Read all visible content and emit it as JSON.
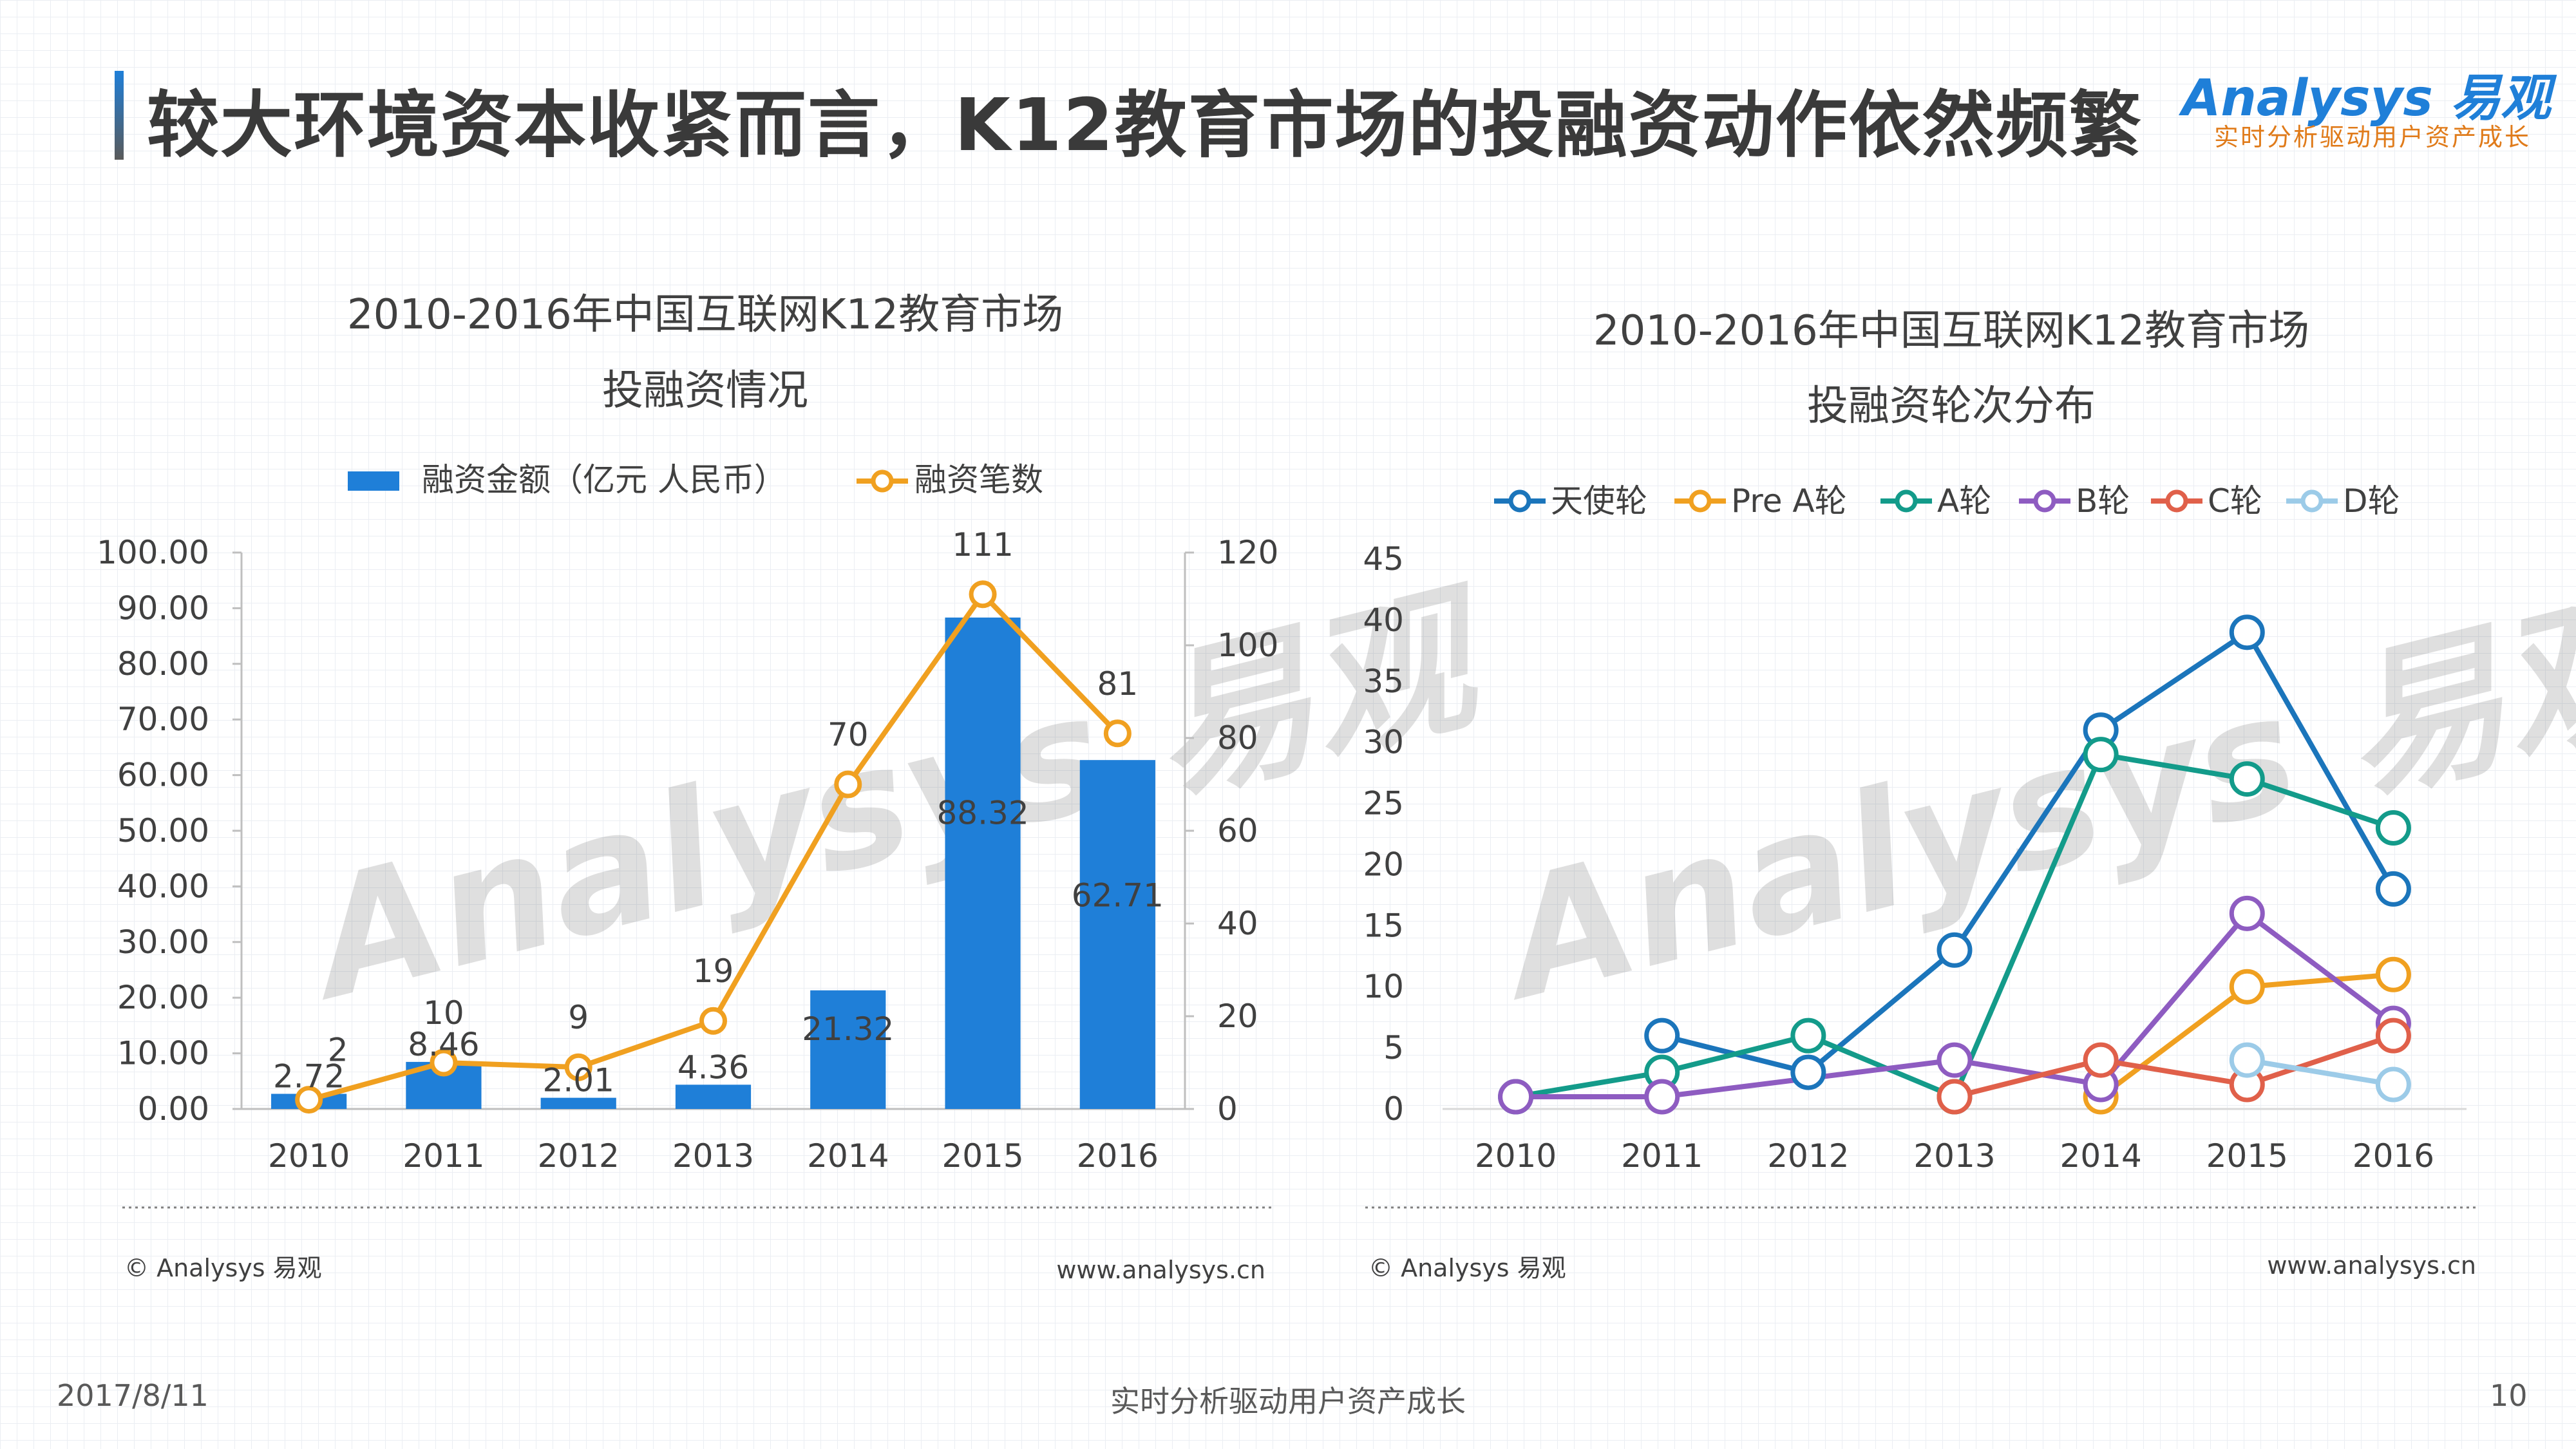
{
  "header": {
    "title": "较大环境资本收紧而言，K12教育市场的投融资动作依然频繁",
    "logo_text": "Analysys 易观",
    "logo_tagline": "实时分析驱动用户资产成长"
  },
  "footer": {
    "date": "2017/8/11",
    "tagline": "实时分析驱动用户资产成长",
    "page_number": "10"
  },
  "colors": {
    "bar": "#1f7fd8",
    "line_orange": "#f0a020",
    "angel": "#1b75bb",
    "pre_a": "#f0a020",
    "a_round": "#139b8a",
    "b_round": "#8e5cc1",
    "c_round": "#e0604a",
    "d_round": "#9ccbe8"
  },
  "chart_data": [
    {
      "type": "bar",
      "title": "2010-2016年中国互联网K12教育市场",
      "subtitle": "投融资情况",
      "categories": [
        "2010",
        "2011",
        "2012",
        "2013",
        "2014",
        "2015",
        "2016"
      ],
      "series": [
        {
          "name": "融资金额（亿元 人民币）",
          "type": "bar",
          "axis": "left",
          "values": [
            2.72,
            8.46,
            2.01,
            4.36,
            21.32,
            88.32,
            62.71
          ],
          "labels": [
            "2.72",
            "8.46",
            "2.01",
            "4.36",
            "21.32",
            "88.32",
            "62.71"
          ]
        },
        {
          "name": "融资笔数",
          "type": "line",
          "axis": "right",
          "values": [
            2,
            10,
            9,
            19,
            70,
            111,
            81
          ],
          "labels": [
            "2",
            "10",
            "9",
            "19",
            "70",
            "111",
            "81"
          ]
        }
      ],
      "ylim_left": [
        0,
        100
      ],
      "ylim_right": [
        0,
        120
      ],
      "left_ticks": [
        "0.00",
        "10.00",
        "20.00",
        "30.00",
        "40.00",
        "50.00",
        "60.00",
        "70.00",
        "80.00",
        "90.00",
        "100.00"
      ],
      "right_ticks": [
        "0",
        "20",
        "40",
        "60",
        "80",
        "100",
        "120"
      ],
      "legend_position": "top",
      "source": "© Analysys 易观",
      "website": "www.analysys.cn"
    },
    {
      "type": "line",
      "title": "2010-2016年中国互联网K12教育市场",
      "subtitle": "投融资轮次分布",
      "categories": [
        "2010",
        "2011",
        "2012",
        "2013",
        "2014",
        "2015",
        "2016"
      ],
      "series": [
        {
          "name": "天使轮",
          "x": [
            "2011",
            "2012",
            "2013",
            "2014",
            "2015",
            "2016"
          ],
          "values": [
            6,
            3,
            13,
            31,
            39,
            18
          ]
        },
        {
          "name": "Pre A轮",
          "x": [
            "2014",
            "2015",
            "2016"
          ],
          "values": [
            1,
            10,
            11
          ]
        },
        {
          "name": "A轮",
          "x": [
            "2010",
            "2011",
            "2012",
            "2013",
            "2014",
            "2015",
            "2016"
          ],
          "values": [
            1,
            3,
            6,
            1,
            29,
            27,
            23
          ]
        },
        {
          "name": "B轮",
          "x": [
            "2010",
            "2011",
            "2013",
            "2014",
            "2015",
            "2016"
          ],
          "values": [
            1,
            1,
            4,
            2,
            16,
            7
          ]
        },
        {
          "name": "C轮",
          "x": [
            "2013",
            "2014",
            "2015",
            "2016"
          ],
          "values": [
            1,
            4,
            2,
            6
          ]
        },
        {
          "name": "D轮",
          "x": [
            "2015",
            "2016"
          ],
          "values": [
            4,
            2
          ]
        }
      ],
      "ylim": [
        0,
        45
      ],
      "y_ticks": [
        "0",
        "5",
        "10",
        "15",
        "20",
        "25",
        "30",
        "35",
        "40",
        "45"
      ],
      "legend_position": "top",
      "source": "© Analysys 易观",
      "website": "www.analysys.cn"
    }
  ]
}
